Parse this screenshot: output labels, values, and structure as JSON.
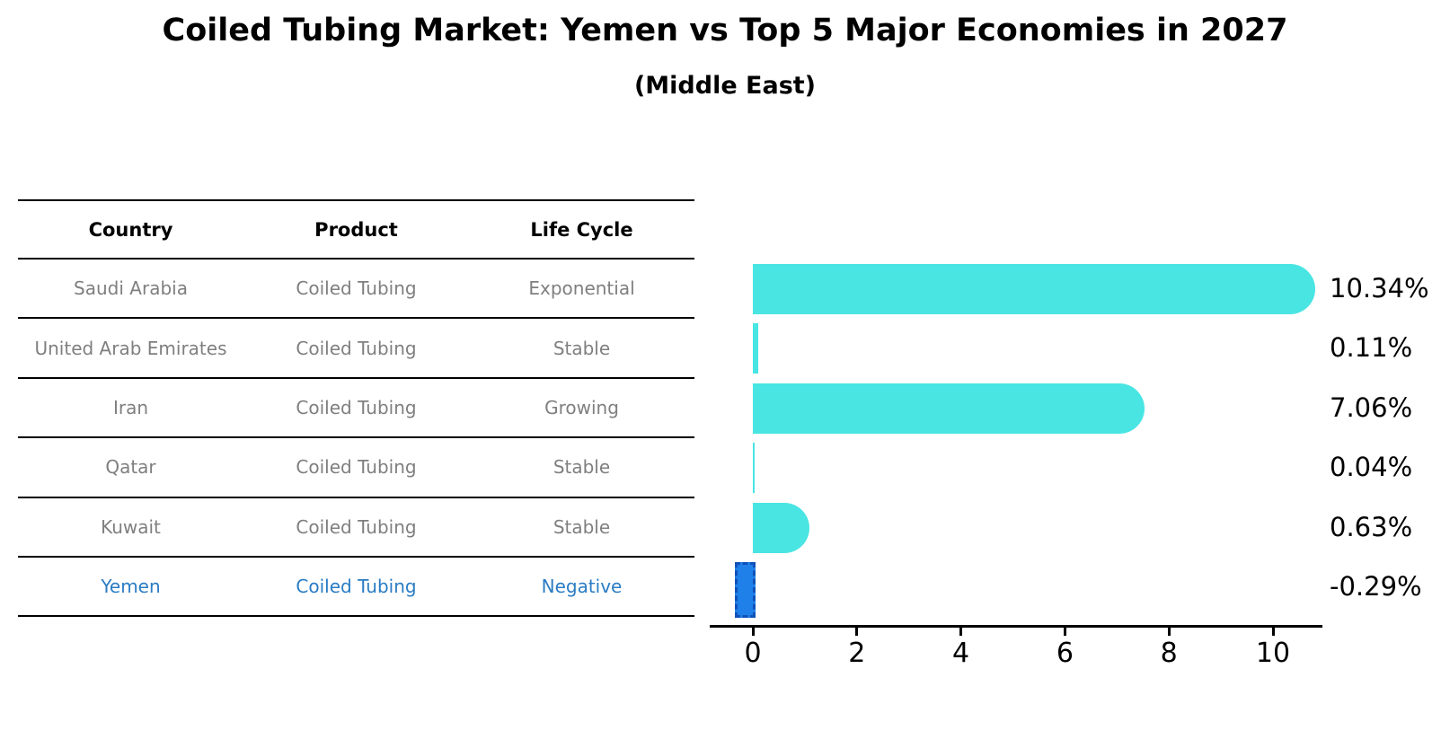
{
  "title": "Coiled Tubing Market: Yemen vs Top 5 Major Economies in 2027",
  "subtitle": "(Middle East)",
  "table": {
    "columns": [
      "Country",
      "Product",
      "Life Cycle"
    ],
    "rows": [
      {
        "country": "Saudi Arabia",
        "product": "Coiled Tubing",
        "life_cycle": "Exponential",
        "highlight": false
      },
      {
        "country": "United Arab Emirates",
        "product": "Coiled Tubing",
        "life_cycle": "Stable",
        "highlight": false
      },
      {
        "country": "Iran",
        "product": "Coiled Tubing",
        "life_cycle": "Growing",
        "highlight": false
      },
      {
        "country": "Qatar",
        "product": "Coiled Tubing",
        "life_cycle": "Stable",
        "highlight": false
      },
      {
        "country": "Kuwait",
        "product": "Coiled Tubing",
        "life_cycle": "Stable",
        "highlight": false
      },
      {
        "country": "Yemen",
        "product": "Coiled Tubing",
        "life_cycle": "Negative",
        "highlight": true
      }
    ]
  },
  "chart_data": {
    "type": "bar",
    "orientation": "horizontal",
    "title": "",
    "xlabel": "",
    "ylabel": "",
    "categories": [
      "Saudi Arabia",
      "United Arab Emirates",
      "Iran",
      "Qatar",
      "Kuwait",
      "Yemen"
    ],
    "values": [
      10.34,
      0.11,
      7.06,
      0.04,
      0.63,
      -0.29
    ],
    "value_labels": [
      "10.34%",
      "0.11%",
      "7.06%",
      "0.04%",
      "0.63%",
      "-0.29%"
    ],
    "x_ticks": [
      0,
      2,
      4,
      6,
      8,
      10
    ],
    "xlim": [
      -0.85,
      11
    ],
    "grid": false,
    "legend": false,
    "bar_color": "#48e5e3",
    "highlight_index": 5,
    "highlight_color": "#1e80e8",
    "highlight_border_color": "#0f52ba"
  },
  "colors": {
    "highlight_text": "#2a7cc4",
    "row_text": "#7f7f7f",
    "axis": "#000000"
  }
}
